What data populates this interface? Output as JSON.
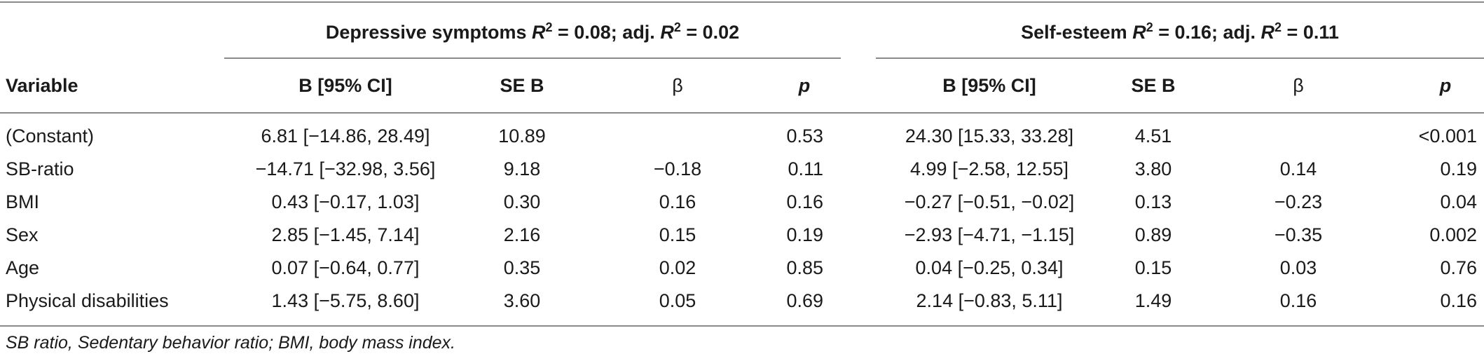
{
  "table": {
    "groups": [
      {
        "label_prefix": "Depressive symptoms ",
        "r2_sym": "R",
        "r2_val": " = 0.08; adj. ",
        "adj_sym": "R",
        "adj_val": " = 0.02",
        "sup": "2"
      },
      {
        "label_prefix": "Self-esteem ",
        "r2_sym": "R",
        "r2_val": " = 0.16; adj. ",
        "adj_sym": "R",
        "adj_val": " = 0.11",
        "sup": "2"
      }
    ],
    "columns": {
      "variable": "Variable",
      "b_ci": "B [95% CI]",
      "se_b": "SE B",
      "beta": "β",
      "p": "p"
    },
    "rows": [
      {
        "variable": "(Constant)",
        "d_b": "6.81 [−14.86, 28.49]",
        "d_se": "10.89",
        "d_beta": "",
        "d_p": "0.53",
        "s_b": "24.30 [15.33, 33.28]",
        "s_se": "4.51",
        "s_beta": "",
        "s_p": "<0.001"
      },
      {
        "variable": "SB-ratio",
        "d_b": "−14.71 [−32.98, 3.56]",
        "d_se": "9.18",
        "d_beta": "−0.18",
        "d_p": "0.11",
        "s_b": "4.99 [−2.58, 12.55]",
        "s_se": "3.80",
        "s_beta": "0.14",
        "s_p": "0.19"
      },
      {
        "variable": "BMI",
        "d_b": "0.43 [−0.17, 1.03]",
        "d_se": "0.30",
        "d_beta": "0.16",
        "d_p": "0.16",
        "s_b": "−0.27 [−0.51, −0.02]",
        "s_se": "0.13",
        "s_beta": "−0.23",
        "s_p": "0.04"
      },
      {
        "variable": "Sex",
        "d_b": "2.85 [−1.45, 7.14]",
        "d_se": "2.16",
        "d_beta": "0.15",
        "d_p": "0.19",
        "s_b": "−2.93 [−4.71, −1.15]",
        "s_se": "0.89",
        "s_beta": "−0.35",
        "s_p": "0.002"
      },
      {
        "variable": "Age",
        "d_b": "0.07 [−0.64, 0.77]",
        "d_se": "0.35",
        "d_beta": "0.02",
        "d_p": "0.85",
        "s_b": "0.04 [−0.25, 0.34]",
        "s_se": "0.15",
        "s_beta": "0.03",
        "s_p": "0.76"
      },
      {
        "variable": "Physical disabilities",
        "d_b": "1.43 [−5.75, 8.60]",
        "d_se": "3.60",
        "d_beta": "0.05",
        "d_p": "0.69",
        "s_b": "2.14 [−0.83, 5.11]",
        "s_se": "1.49",
        "s_beta": "0.16",
        "s_p": "0.16"
      }
    ],
    "footnote": "SB ratio, Sedentary behavior ratio; BMI, body mass index."
  }
}
